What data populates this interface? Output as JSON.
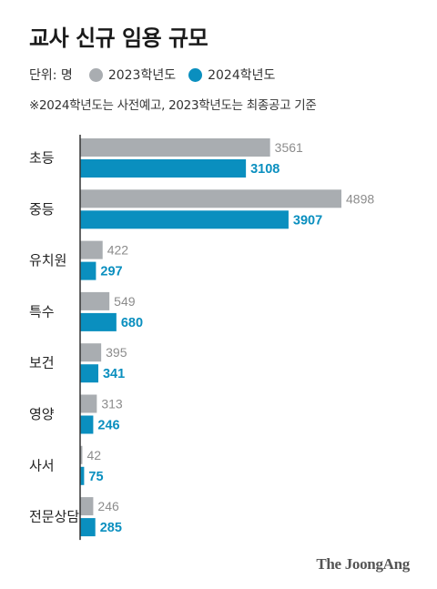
{
  "colors": {
    "series_2023": "#a9adb1",
    "series_2024": "#0a8fbf",
    "axis": "#333333"
  },
  "chart_data": {
    "type": "bar",
    "orientation": "horizontal",
    "title": "교사 신규 임용 규모",
    "unit_label": "단위: 명",
    "note": "※2024학년도는 사전예고, 2023학년도는 최종공고 기준",
    "legend_placement": "top",
    "categories": [
      "초등",
      "중등",
      "유치원",
      "특수",
      "보건",
      "영양",
      "사서",
      "전문상담"
    ],
    "series": [
      {
        "name": "2023학년도",
        "values": [
          3561,
          4898,
          422,
          549,
          395,
          313,
          42,
          246
        ]
      },
      {
        "name": "2024학년도",
        "values": [
          3108,
          3907,
          297,
          680,
          341,
          246,
          75,
          285
        ]
      }
    ],
    "xlim": [
      0,
      5000
    ],
    "grid": false
  },
  "source": "The JoongAng"
}
